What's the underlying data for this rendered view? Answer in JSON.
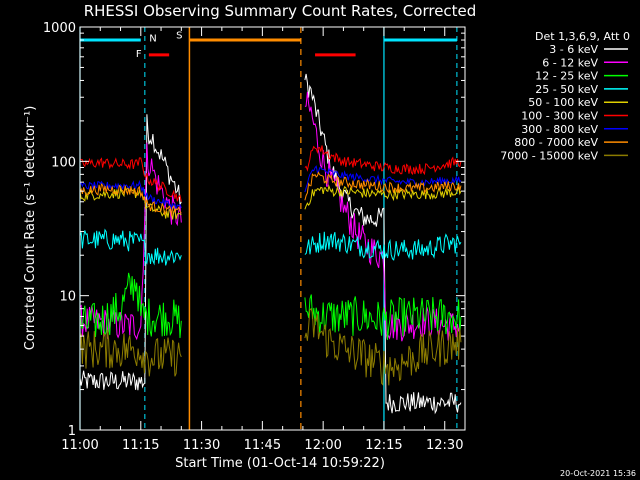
{
  "colors": {
    "background": "#000000",
    "foreground": "#ffffff",
    "cyan": "#00e5ff",
    "orange": "#ff8c00",
    "red": "#ff0000",
    "flag_label": "#ffa500"
  },
  "chart_data": {
    "type": "line",
    "title": "RHESSI Observing Summary Count Rates, Corrected",
    "xlabel": "Start Time (01-Oct-14 10:59:22)",
    "ylabel": "Corrected Count Rate (s⁻¹ detector⁻¹)",
    "yscale": "log",
    "xlim_minutes": [
      0,
      95
    ],
    "ylim": [
      1,
      1000
    ],
    "x_ticks": [
      {
        "t": 0,
        "label": "11:00"
      },
      {
        "t": 15,
        "label": "11:15"
      },
      {
        "t": 30,
        "label": "11:30"
      },
      {
        "t": 45,
        "label": "11:45"
      },
      {
        "t": 60,
        "label": "12:00"
      },
      {
        "t": 75,
        "label": "12:15"
      },
      {
        "t": 90,
        "label": "12:30"
      }
    ],
    "y_ticks": [
      {
        "v": 1,
        "label": "1"
      },
      {
        "v": 10,
        "label": "10"
      },
      {
        "v": 100,
        "label": "100"
      },
      {
        "v": 1000,
        "label": "1000"
      }
    ],
    "legend_title": "Det 1,3,6,9, Att 0",
    "legend_position": "right",
    "timestamp": "20-Oct-2021 15:36",
    "series": [
      {
        "name": "3 - 6 keV",
        "color": "#ffffff",
        "values": [
          [
            0,
            2.3
          ],
          [
            5,
            2.3
          ],
          [
            12,
            2.3
          ],
          [
            16,
            2.3
          ],
          [
            16.5,
            190
          ],
          [
            17,
            160
          ],
          [
            18,
            150
          ],
          [
            19,
            125
          ],
          [
            20,
            110
          ],
          [
            21,
            95
          ],
          [
            22,
            80
          ],
          [
            23,
            70
          ],
          [
            24,
            60
          ],
          [
            25,
            50
          ],
          [
            55.5,
            400
          ],
          [
            57,
            330
          ],
          [
            58,
            250
          ],
          [
            60,
            150
          ],
          [
            62,
            90
          ],
          [
            64,
            65
          ],
          [
            66,
            50
          ],
          [
            68,
            42
          ],
          [
            70,
            38
          ],
          [
            72,
            37
          ],
          [
            74,
            38
          ],
          [
            75,
            40
          ],
          [
            75.5,
            1.6
          ],
          [
            80,
            1.6
          ],
          [
            85,
            1.6
          ],
          [
            90,
            1.6
          ],
          [
            94,
            1.6
          ]
        ]
      },
      {
        "name": "6 - 12 keV",
        "color": "#ff00ff",
        "values": [
          [
            0,
            6.5
          ],
          [
            5,
            6.3
          ],
          [
            10,
            6
          ],
          [
            14,
            6
          ],
          [
            15,
            6
          ],
          [
            16.5,
            110
          ],
          [
            17,
            100
          ],
          [
            18,
            85
          ],
          [
            19,
            70
          ],
          [
            20,
            60
          ],
          [
            21,
            55
          ],
          [
            22,
            45
          ],
          [
            24,
            40
          ],
          [
            25,
            35
          ],
          [
            55.5,
            270
          ],
          [
            57,
            230
          ],
          [
            58,
            170
          ],
          [
            59,
            130
          ],
          [
            60,
            100
          ],
          [
            62,
            70
          ],
          [
            64,
            55
          ],
          [
            65,
            45
          ],
          [
            66,
            40
          ],
          [
            68,
            30
          ],
          [
            70,
            25
          ],
          [
            72,
            22
          ],
          [
            74,
            20
          ],
          [
            75,
            19
          ],
          [
            75.5,
            6
          ],
          [
            80,
            6
          ],
          [
            85,
            6.5
          ],
          [
            90,
            6
          ],
          [
            94,
            6
          ]
        ]
      },
      {
        "name": "12 - 25 keV",
        "color": "#00ff00",
        "values": [
          [
            0,
            6
          ],
          [
            5,
            6.5
          ],
          [
            10,
            8
          ],
          [
            12,
            11
          ],
          [
            14,
            13
          ],
          [
            15,
            7
          ],
          [
            17,
            7
          ],
          [
            20,
            7
          ],
          [
            22,
            7
          ],
          [
            24,
            6.5
          ],
          [
            25,
            6.5
          ],
          [
            55.5,
            8
          ],
          [
            58,
            7.5
          ],
          [
            60,
            7
          ],
          [
            65,
            7
          ],
          [
            70,
            7
          ],
          [
            75,
            6.5
          ],
          [
            80,
            7
          ],
          [
            85,
            7
          ],
          [
            90,
            7
          ],
          [
            94,
            7
          ]
        ]
      },
      {
        "name": "25 - 50 keV",
        "color": "#00ffff",
        "values": [
          [
            0,
            26
          ],
          [
            5,
            26
          ],
          [
            10,
            26
          ],
          [
            14,
            25
          ],
          [
            15,
            25
          ],
          [
            16.5,
            21
          ],
          [
            18,
            20
          ],
          [
            20,
            20
          ],
          [
            22,
            20
          ],
          [
            24,
            20
          ],
          [
            25,
            20
          ],
          [
            55.5,
            22
          ],
          [
            58,
            24
          ],
          [
            60,
            26
          ],
          [
            62,
            26
          ],
          [
            65,
            25
          ],
          [
            70,
            23
          ],
          [
            72,
            23
          ],
          [
            75,
            22
          ],
          [
            78,
            22
          ],
          [
            80,
            22
          ],
          [
            85,
            22
          ],
          [
            90,
            24
          ],
          [
            94,
            25
          ]
        ]
      },
      {
        "name": "50 - 100 keV",
        "color": "#e0d000",
        "values": [
          [
            0,
            55
          ],
          [
            5,
            57
          ],
          [
            10,
            58
          ],
          [
            14,
            58
          ],
          [
            15,
            60
          ],
          [
            16.5,
            45
          ],
          [
            18,
            44
          ],
          [
            20,
            42
          ],
          [
            22,
            40
          ],
          [
            24,
            40
          ],
          [
            25,
            40
          ],
          [
            55.5,
            45
          ],
          [
            57,
            55
          ],
          [
            58,
            60
          ],
          [
            60,
            62
          ],
          [
            62,
            60
          ],
          [
            65,
            60
          ],
          [
            70,
            58
          ],
          [
            75,
            57
          ],
          [
            80,
            57
          ],
          [
            85,
            57
          ],
          [
            90,
            58
          ],
          [
            94,
            60
          ]
        ]
      },
      {
        "name": "100 - 300 keV",
        "color": "#ff0000",
        "values": [
          [
            0,
            95
          ],
          [
            5,
            98
          ],
          [
            10,
            95
          ],
          [
            14,
            95
          ],
          [
            15,
            100
          ],
          [
            16.5,
            75
          ],
          [
            18,
            70
          ],
          [
            20,
            65
          ],
          [
            22,
            60
          ],
          [
            24,
            55
          ],
          [
            25,
            50
          ],
          [
            55.5,
            85
          ],
          [
            57,
            110
          ],
          [
            58,
            130
          ],
          [
            60,
            120
          ],
          [
            62,
            110
          ],
          [
            65,
            100
          ],
          [
            70,
            95
          ],
          [
            75,
            90
          ],
          [
            80,
            88
          ],
          [
            85,
            88
          ],
          [
            90,
            95
          ],
          [
            94,
            100
          ]
        ]
      },
      {
        "name": "300 - 800 keV",
        "color": "#0000ff",
        "values": [
          [
            0,
            65
          ],
          [
            5,
            66
          ],
          [
            10,
            66
          ],
          [
            14,
            66
          ],
          [
            15,
            66
          ],
          [
            16.5,
            55
          ],
          [
            18,
            52
          ],
          [
            20,
            50
          ],
          [
            22,
            48
          ],
          [
            24,
            46
          ],
          [
            25,
            45
          ],
          [
            55.5,
            60
          ],
          [
            57,
            80
          ],
          [
            58,
            90
          ],
          [
            60,
            85
          ],
          [
            62,
            82
          ],
          [
            65,
            78
          ],
          [
            70,
            75
          ],
          [
            75,
            72
          ],
          [
            80,
            70
          ],
          [
            85,
            70
          ],
          [
            90,
            72
          ],
          [
            94,
            72
          ]
        ]
      },
      {
        "name": "800 - 7000 keV",
        "color": "#ff8c00",
        "values": [
          [
            0,
            60
          ],
          [
            5,
            62
          ],
          [
            10,
            62
          ],
          [
            14,
            60
          ],
          [
            15,
            60
          ],
          [
            16.5,
            48
          ],
          [
            18,
            46
          ],
          [
            20,
            45
          ],
          [
            22,
            43
          ],
          [
            24,
            42
          ],
          [
            25,
            41
          ],
          [
            55.5,
            55
          ],
          [
            57,
            70
          ],
          [
            58,
            80
          ],
          [
            60,
            75
          ],
          [
            62,
            72
          ],
          [
            65,
            70
          ],
          [
            70,
            67
          ],
          [
            75,
            65
          ],
          [
            80,
            63
          ],
          [
            85,
            63
          ],
          [
            90,
            65
          ],
          [
            94,
            66
          ]
        ]
      },
      {
        "name": "7000 - 15000 keV",
        "color": "#8b7b00",
        "values": [
          [
            0,
            4
          ],
          [
            5,
            4
          ],
          [
            10,
            4
          ],
          [
            14,
            4
          ],
          [
            15,
            4
          ],
          [
            16.5,
            3.5
          ],
          [
            18,
            3.5
          ],
          [
            20,
            3.5
          ],
          [
            22,
            3.5
          ],
          [
            24,
            3.5
          ],
          [
            25,
            3.5
          ],
          [
            55.5,
            5
          ],
          [
            57,
            6
          ],
          [
            58,
            6
          ],
          [
            60,
            5
          ],
          [
            62,
            4.5
          ],
          [
            65,
            4
          ],
          [
            70,
            3.5
          ],
          [
            75,
            3
          ],
          [
            78,
            3
          ],
          [
            80,
            3.2
          ],
          [
            85,
            3.8
          ],
          [
            90,
            4.2
          ],
          [
            94,
            4.5
          ]
        ]
      }
    ],
    "markers": {
      "vlines_cyan_solid": [
        0,
        75
      ],
      "vlines_cyan_dashed": [
        16,
        93
      ],
      "vlines_orange_solid": [
        27
      ],
      "vlines_orange_dashed": [
        54.5
      ],
      "bars": [
        {
          "color": "cyan",
          "t0": 0,
          "t1": 15,
          "value": 800
        },
        {
          "color": "red",
          "t0": 17,
          "t1": 22,
          "value": 620
        },
        {
          "color": "orange",
          "t0": 27,
          "t1": 54.5,
          "value": 800
        },
        {
          "color": "red",
          "t0": 58,
          "t1": 68,
          "value": 620
        },
        {
          "color": "cyan",
          "t0": 75,
          "t1": 93,
          "value": 800
        }
      ],
      "labels": [
        {
          "text": "F",
          "color": "red",
          "t": 14.5,
          "value": 600
        },
        {
          "text": "N",
          "color": "cyan",
          "t": 18,
          "value": 780
        },
        {
          "text": "S",
          "color": "flag_label",
          "t": 24.5,
          "value": 820
        }
      ]
    }
  }
}
